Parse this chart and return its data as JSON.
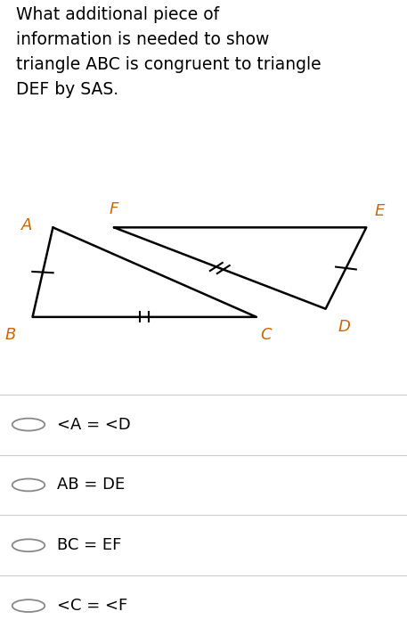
{
  "question_text": "What additional piece of\ninformation is needed to show\ntriangle ABC is congruent to triangle\nDEF by SAS.",
  "background_color": "#ffffff",
  "text_color": "#000000",
  "triangle_ABC": {
    "A": [
      0.13,
      0.82
    ],
    "B": [
      0.08,
      0.38
    ],
    "C": [
      0.63,
      0.38
    ]
  },
  "triangle_DEF": {
    "D": [
      0.8,
      0.42
    ],
    "E": [
      0.9,
      0.82
    ],
    "F": [
      0.28,
      0.82
    ]
  },
  "options": [
    "<A = <D",
    "AB = DE",
    "BC = EF",
    "<C = <F"
  ],
  "fig_width": 4.57,
  "fig_height": 7.14,
  "dpi": 100
}
